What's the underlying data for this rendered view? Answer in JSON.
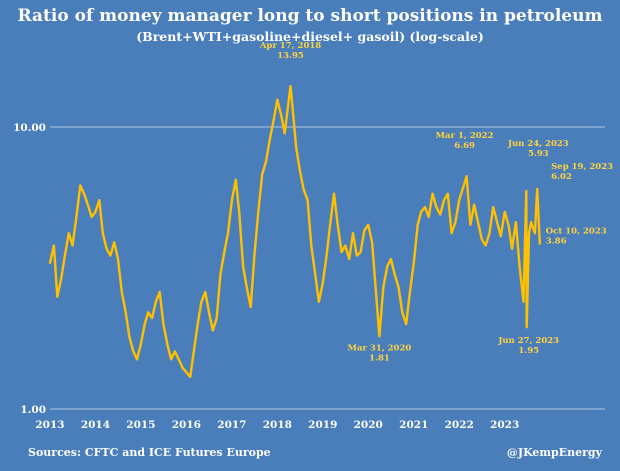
{
  "chart_data": {
    "type": "line",
    "title": "Ratio of money manager long to short positions in petroleum",
    "subtitle": "(Brent+WTI+gasoline+diesel+ gasoil) (log-scale)",
    "y_scale": "log",
    "ylim": [
      1,
      17
    ],
    "y_ticks": [
      "10.00",
      "1.00"
    ],
    "x_ticks": [
      "2013",
      "2014",
      "2015",
      "2016",
      "2017",
      "2018",
      "2019",
      "2020",
      "2021",
      "2022",
      "2023"
    ],
    "xlim": [
      "2013-01-01",
      "2023-12-31"
    ],
    "grid": "horizontal",
    "series": [
      {
        "color": "#ffc000",
        "x": [
          "2013-01-01",
          "2013-02-01",
          "2013-03-01",
          "2013-04-01",
          "2013-05-01",
          "2013-06-01",
          "2013-07-01",
          "2013-08-01",
          "2013-09-01",
          "2013-10-01",
          "2013-11-01",
          "2013-12-01",
          "2014-01-01",
          "2014-02-01",
          "2014-03-01",
          "2014-04-01",
          "2014-05-01",
          "2014-06-01",
          "2014-07-01",
          "2014-08-01",
          "2014-09-01",
          "2014-10-01",
          "2014-11-01",
          "2014-12-01",
          "2015-01-01",
          "2015-02-01",
          "2015-03-01",
          "2015-04-01",
          "2015-05-01",
          "2015-06-01",
          "2015-07-01",
          "2015-08-01",
          "2015-09-01",
          "2015-10-01",
          "2015-11-01",
          "2015-12-01",
          "2016-01-01",
          "2016-02-01",
          "2016-03-01",
          "2016-04-01",
          "2016-05-01",
          "2016-06-01",
          "2016-07-01",
          "2016-08-01",
          "2016-09-01",
          "2016-10-01",
          "2016-11-01",
          "2016-12-01",
          "2017-01-01",
          "2017-02-01",
          "2017-03-01",
          "2017-04-01",
          "2017-05-01",
          "2017-06-01",
          "2017-07-01",
          "2017-08-01",
          "2017-09-01",
          "2017-10-01",
          "2017-11-01",
          "2017-12-01",
          "2018-01-01",
          "2018-02-01",
          "2018-03-01",
          "2018-04-17",
          "2018-05-01",
          "2018-06-01",
          "2018-07-01",
          "2018-08-01",
          "2018-09-01",
          "2018-10-01",
          "2018-11-01",
          "2018-12-01",
          "2019-01-01",
          "2019-02-01",
          "2019-03-01",
          "2019-04-01",
          "2019-05-01",
          "2019-06-01",
          "2019-07-01",
          "2019-08-01",
          "2019-09-01",
          "2019-10-01",
          "2019-11-01",
          "2019-12-01",
          "2020-01-01",
          "2020-02-01",
          "2020-03-31",
          "2020-04-15",
          "2020-05-01",
          "2020-06-01",
          "2020-07-01",
          "2020-08-01",
          "2020-09-01",
          "2020-10-01",
          "2020-11-01",
          "2020-12-01",
          "2021-01-01",
          "2021-02-01",
          "2021-03-01",
          "2021-04-01",
          "2021-05-01",
          "2021-06-01",
          "2021-07-01",
          "2021-08-01",
          "2021-09-01",
          "2021-10-01",
          "2021-11-01",
          "2021-12-01",
          "2022-01-01",
          "2022-03-01",
          "2022-04-01",
          "2022-05-01",
          "2022-06-01",
          "2022-07-01",
          "2022-08-01",
          "2022-09-01",
          "2022-10-01",
          "2022-11-01",
          "2022-12-01",
          "2023-01-01",
          "2023-02-01",
          "2023-03-01",
          "2023-04-01",
          "2023-05-01",
          "2023-06-01",
          "2023-06-24",
          "2023-06-27",
          "2023-07-15",
          "2023-08-01",
          "2023-09-01",
          "2023-09-19",
          "2023-10-10"
        ],
        "y": [
          3.3,
          3.8,
          2.5,
          2.9,
          3.5,
          4.2,
          3.8,
          4.8,
          6.2,
          5.8,
          5.3,
          4.8,
          5.0,
          5.5,
          4.2,
          3.7,
          3.5,
          3.9,
          3.4,
          2.6,
          2.2,
          1.8,
          1.6,
          1.5,
          1.7,
          2.0,
          2.2,
          2.1,
          2.4,
          2.6,
          2.0,
          1.7,
          1.5,
          1.6,
          1.5,
          1.4,
          1.35,
          1.3,
          1.6,
          2.0,
          2.4,
          2.6,
          2.2,
          1.9,
          2.1,
          3.0,
          3.6,
          4.2,
          5.5,
          6.5,
          5.0,
          3.2,
          2.7,
          2.3,
          3.5,
          5.0,
          6.8,
          7.5,
          9.0,
          10.5,
          12.5,
          11.0,
          9.5,
          13.95,
          12.0,
          8.5,
          7.0,
          6.0,
          5.5,
          3.8,
          3.0,
          2.4,
          2.8,
          3.5,
          4.5,
          5.8,
          4.5,
          3.6,
          3.8,
          3.4,
          4.2,
          3.5,
          3.6,
          4.3,
          4.5,
          3.9,
          1.81,
          2.2,
          2.7,
          3.2,
          3.4,
          3.0,
          2.7,
          2.2,
          2.0,
          2.6,
          3.3,
          4.5,
          5.0,
          5.2,
          4.8,
          5.8,
          5.2,
          4.9,
          5.5,
          5.8,
          4.2,
          4.6,
          5.5,
          6.69,
          4.5,
          5.3,
          4.6,
          4.0,
          3.8,
          4.2,
          5.2,
          4.6,
          4.1,
          5.0,
          4.5,
          3.7,
          4.6,
          3.2,
          2.4,
          5.93,
          1.95,
          4.2,
          4.6,
          4.2,
          6.02,
          3.86
        ]
      }
    ],
    "annotations": [
      {
        "label": "Apr 17, 2018",
        "value": "13.95"
      },
      {
        "label": "Mar 31, 2020",
        "value": "1.81"
      },
      {
        "label": "Mar 1, 2022",
        "value": "6.69"
      },
      {
        "label": "Jun 24, 2023",
        "value": "5.93"
      },
      {
        "label": "Sep 19, 2023",
        "value": "6.02"
      },
      {
        "label": "Oct 10, 2023",
        "value": "3.86"
      },
      {
        "label": "Jun 27, 2023",
        "value": "1.95"
      }
    ]
  },
  "footer": {
    "source": "Sources: CFTC and ICE Futures Europe",
    "handle": "@JKempEnergy"
  }
}
